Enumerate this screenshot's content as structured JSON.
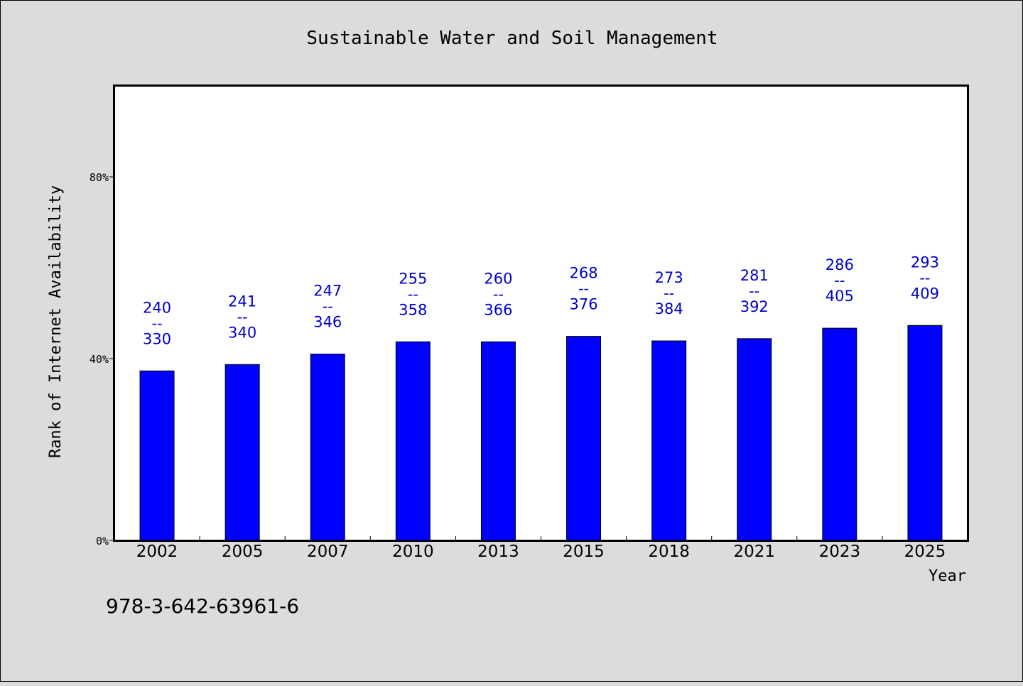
{
  "colors": {
    "background": "#dcdcdc",
    "plot_bg": "#ffffff",
    "bar": "#0000ff",
    "label": "#0000cc",
    "axis": "#000000"
  },
  "footer": {
    "isbn": "978-3-642-63961-6"
  },
  "chart_data": {
    "type": "bar",
    "title": "Sustainable Water and Soil Management",
    "xlabel": "Year",
    "ylabel": "Rank of Internet Availability",
    "ylim": [
      0,
      100
    ],
    "yticks": [
      0,
      40,
      80
    ],
    "ytick_labels": [
      "0%",
      "40%",
      "80%"
    ],
    "grid": false,
    "categories": [
      "2002",
      "2005",
      "2007",
      "2010",
      "2013",
      "2015",
      "2018",
      "2021",
      "2023",
      "2025"
    ],
    "values": [
      37.3,
      38.7,
      41.0,
      43.7,
      43.7,
      44.9,
      43.9,
      44.4,
      46.7,
      47.3
    ],
    "bar_labels": [
      {
        "top": "240",
        "sep": "--",
        "bottom": "330"
      },
      {
        "top": "241",
        "sep": "--",
        "bottom": "340"
      },
      {
        "top": "247",
        "sep": "--",
        "bottom": "346"
      },
      {
        "top": "255",
        "sep": "--",
        "bottom": "358"
      },
      {
        "top": "260",
        "sep": "--",
        "bottom": "366"
      },
      {
        "top": "268",
        "sep": "--",
        "bottom": "376"
      },
      {
        "top": "273",
        "sep": "--",
        "bottom": "384"
      },
      {
        "top": "281",
        "sep": "--",
        "bottom": "392"
      },
      {
        "top": "286",
        "sep": "--",
        "bottom": "405"
      },
      {
        "top": "293",
        "sep": "--",
        "bottom": "409"
      }
    ]
  }
}
